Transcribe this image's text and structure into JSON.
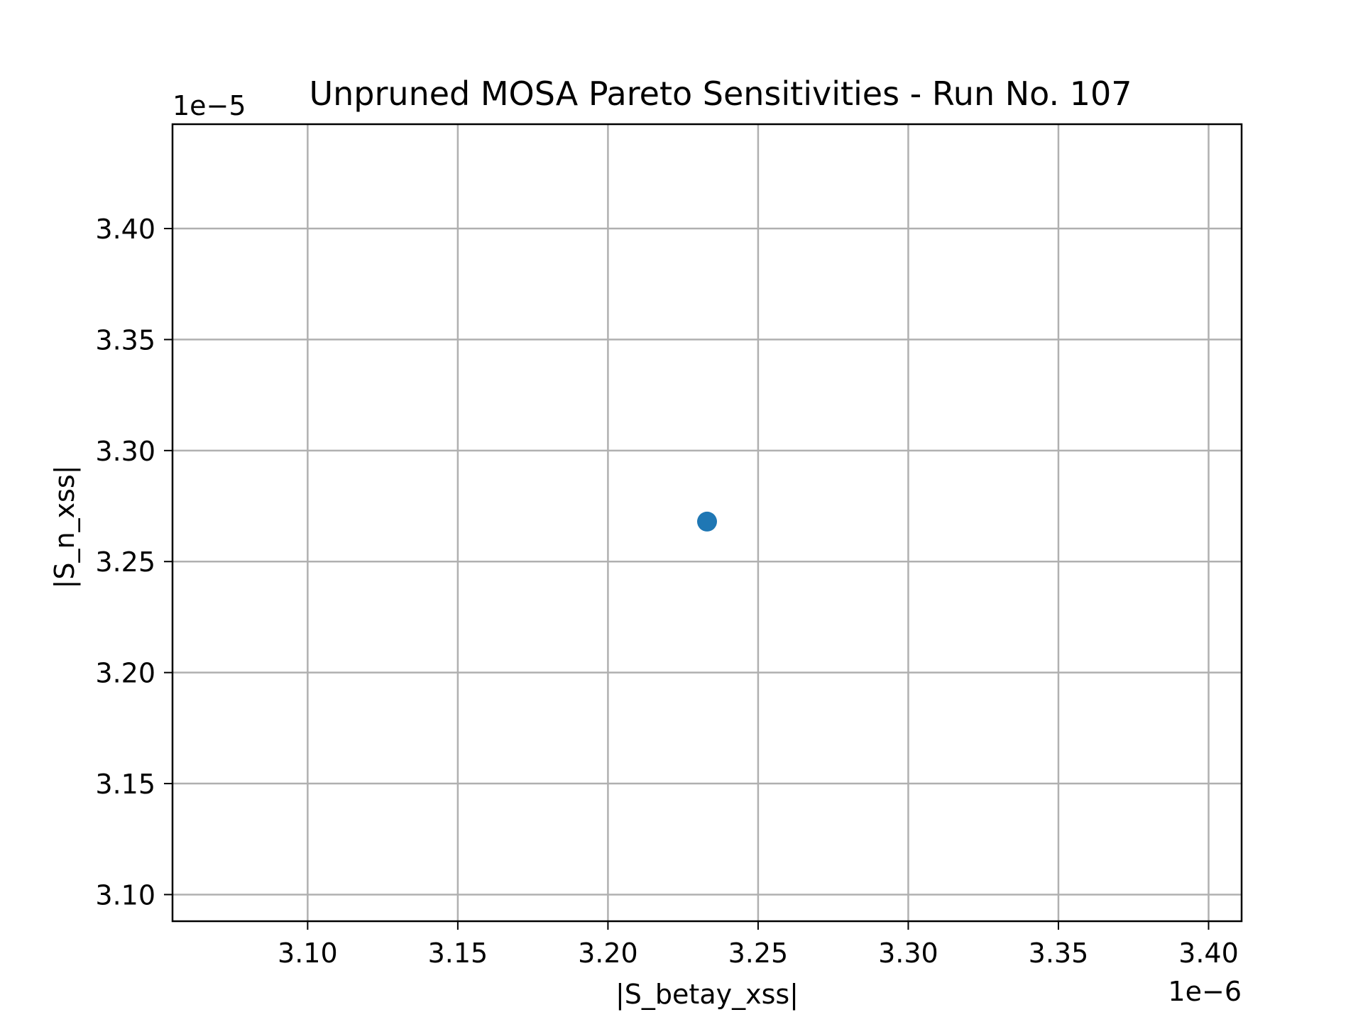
{
  "chart_data": {
    "type": "scatter",
    "title": "Unpruned MOSA Pareto Sensitivities - Run No. 107",
    "xlabel": "|S_betay_xss|",
    "ylabel": "|S_n_xss|",
    "x_offset_label": "1e−6",
    "y_offset_label": "1e−5",
    "xlim": [
      3.055,
      3.411
    ],
    "ylim": [
      3.088,
      3.447
    ],
    "x_ticks": [
      "3.10",
      "3.15",
      "3.20",
      "3.25",
      "3.30",
      "3.35",
      "3.40"
    ],
    "y_ticks": [
      "3.10",
      "3.15",
      "3.20",
      "3.25",
      "3.30",
      "3.35",
      "3.40"
    ],
    "grid": true,
    "series": [
      {
        "color": "#1f77b4",
        "points": [
          {
            "x": 3.233,
            "y": 3.268
          }
        ]
      }
    ]
  }
}
